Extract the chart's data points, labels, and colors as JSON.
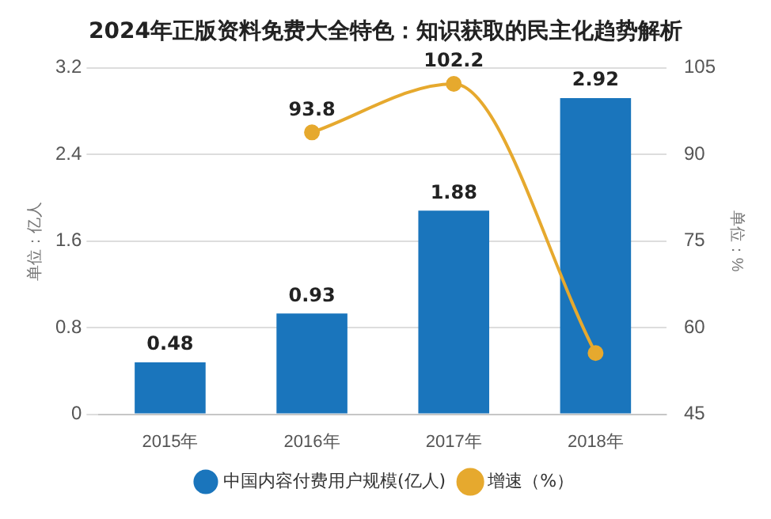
{
  "chart_data": {
    "type": "bar",
    "title": "2024年正版资料免费大全特色：知识获取的民主化趋势解析",
    "categories": [
      "2015年",
      "2016年",
      "2017年",
      "2018年"
    ],
    "series": [
      {
        "name": "中国内容付费用户规模(亿人)",
        "color": "#1a75bc",
        "values": [
          0.48,
          0.93,
          1.88,
          2.92
        ],
        "value_labels": [
          "0.48",
          "0.93",
          "1.88",
          "2.92"
        ]
      },
      {
        "name": "增速（%）",
        "type": "line",
        "axis": "y2",
        "color": "#e6a92e",
        "marker": "circle",
        "values": [
          null,
          93.8,
          102.2,
          55.6
        ],
        "value_labels": [
          null,
          "93.8",
          "102.2",
          null
        ]
      }
    ],
    "ylabel": "单位：亿人",
    "y2label": "单位：%",
    "ylim": [
      0,
      3.2
    ],
    "yticks": [
      0,
      0.8,
      1.6,
      2.4,
      3.2
    ],
    "y2lim": [
      45,
      105
    ],
    "y2ticks": [
      45,
      60,
      75,
      90,
      105
    ],
    "grid": "y",
    "legend": "bottom"
  }
}
